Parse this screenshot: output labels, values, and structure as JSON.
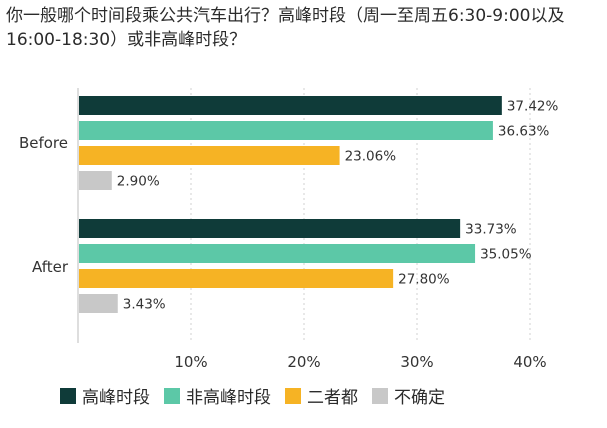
{
  "chart_data": {
    "type": "bar",
    "orientation": "horizontal",
    "title": "你一般哪个时间段乘公共汽车出行？高峰时段（周一至周五6:30-9:00以及16:00-18:30）或非高峰时段？",
    "groups": [
      "Before",
      "After"
    ],
    "series": [
      {
        "name": "高峰时段",
        "color": "#0f3b39",
        "values": [
          37.42,
          33.73
        ],
        "labels": [
          "37.42%",
          "33.73%"
        ]
      },
      {
        "name": "非高峰时段",
        "color": "#5cc8a7",
        "values": [
          36.63,
          35.05
        ],
        "labels": [
          "36.63%",
          "35.05%"
        ]
      },
      {
        "name": "二者都",
        "color": "#f6b324",
        "values": [
          23.06,
          27.8
        ],
        "labels": [
          "23.06%",
          "27.80%"
        ]
      },
      {
        "name": "不确定",
        "color": "#c8c8c8",
        "values": [
          2.9,
          3.43
        ],
        "labels": [
          "2.90%",
          "3.43%"
        ]
      }
    ],
    "xlim": [
      0,
      40
    ],
    "x_ticks": [
      10,
      20,
      30,
      40
    ],
    "x_tick_labels": [
      "10%",
      "20%",
      "30%",
      "40%"
    ],
    "grid": true,
    "legend_position": "bottom"
  }
}
